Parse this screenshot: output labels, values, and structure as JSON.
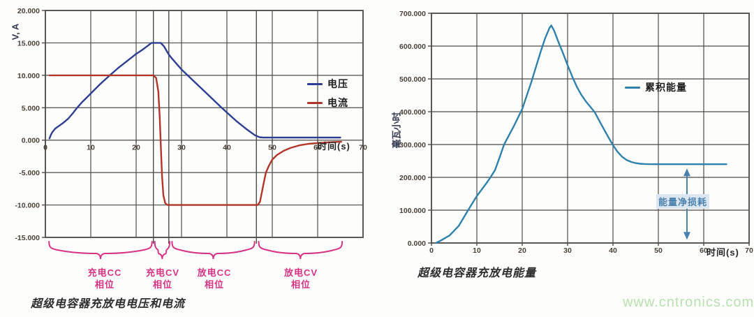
{
  "page": {
    "watermark": "www.cntronics.com"
  },
  "chart_data": [
    {
      "type": "line",
      "title": "超级电容器充放电电压和电流",
      "xlabel": "时间(s)",
      "ylabel": "V, A",
      "xlim": [
        0,
        70
      ],
      "ylim": [
        -15,
        20
      ],
      "grid": true,
      "legend_position": "inside-right",
      "x_ticks": [
        0,
        10,
        20,
        30,
        40,
        50,
        60,
        70
      ],
      "x_tick_labels": [
        "0",
        "10",
        "20",
        "30",
        "40",
        "50",
        "60",
        "70"
      ],
      "x_tick_label_position": "zero-line",
      "y_ticks": [
        20,
        15,
        10,
        5,
        0,
        -5,
        -10,
        -15
      ],
      "y_tick_labels": [
        "20.000",
        "15.000",
        "10.000",
        "5.000",
        "0.000",
        "-5.000",
        "-10.000",
        "-15.000"
      ],
      "phase_boundaries_x": [
        23.8,
        27.2,
        46.5
      ],
      "phases": [
        {
          "name": "充电CC",
          "sub": "相位",
          "x_range": [
            0.8,
            23.5
          ]
        },
        {
          "name": "充电CV",
          "sub": "相位",
          "x_range": [
            24.1,
            27.4
          ]
        },
        {
          "name": "放电CC",
          "sub": "相位",
          "x_range": [
            27.9,
            46.1
          ]
        },
        {
          "name": "放电CV",
          "sub": "相位",
          "x_range": [
            47.0,
            65.4
          ]
        }
      ],
      "series": [
        {
          "name": "电压",
          "color": "#2d3e92",
          "points": [
            [
              0.9,
              0.25
            ],
            [
              1.2,
              0.8
            ],
            [
              1.6,
              1.3
            ],
            [
              2.2,
              1.8
            ],
            [
              3,
              2.2
            ],
            [
              4,
              2.7
            ],
            [
              5,
              3.3
            ],
            [
              6,
              4.1
            ],
            [
              7,
              5.0
            ],
            [
              8,
              5.8
            ],
            [
              10,
              7.2
            ],
            [
              12,
              8.6
            ],
            [
              14.2,
              10
            ],
            [
              16,
              11.1
            ],
            [
              18,
              12.2
            ],
            [
              20,
              13.3
            ],
            [
              21.5,
              14
            ],
            [
              23.4,
              15
            ],
            [
              25.4,
              15
            ],
            [
              26.1,
              14.5
            ],
            [
              27.2,
              13.2
            ],
            [
              28,
              12.5
            ],
            [
              30,
              10.9
            ],
            [
              33,
              8.9
            ],
            [
              36,
              6.9
            ],
            [
              39,
              4.9
            ],
            [
              42,
              3.0
            ],
            [
              44.5,
              1.6
            ],
            [
              46.2,
              0.75
            ],
            [
              47.2,
              0.45
            ],
            [
              48,
              0.4
            ],
            [
              55,
              0.4
            ],
            [
              65,
              0.4
            ]
          ]
        },
        {
          "name": "电流",
          "color": "#b23529",
          "points": [
            [
              0.9,
              10
            ],
            [
              23.8,
              10
            ],
            [
              24.4,
              9.6
            ],
            [
              24.9,
              7.5
            ],
            [
              25.2,
              3.5
            ],
            [
              25.45,
              -1
            ],
            [
              25.7,
              -5.5
            ],
            [
              26,
              -8.5
            ],
            [
              26.4,
              -9.7
            ],
            [
              26.9,
              -10
            ],
            [
              46.8,
              -10
            ],
            [
              47.3,
              -9.5
            ],
            [
              48,
              -7
            ],
            [
              48.6,
              -5
            ],
            [
              49.3,
              -3.9
            ],
            [
              50,
              -3
            ],
            [
              51,
              -2.3
            ],
            [
              52.5,
              -1.65
            ],
            [
              54,
              -1.2
            ],
            [
              56,
              -0.8
            ],
            [
              58,
              -0.57
            ],
            [
              60,
              -0.45
            ],
            [
              62,
              -0.35
            ],
            [
              64,
              -0.28
            ],
            [
              65.2,
              -0.26
            ]
          ]
        }
      ]
    },
    {
      "type": "line",
      "title": "超级电容器充放电能量",
      "xlabel": "时间(s)",
      "ylabel": "毫瓦小时",
      "xlim": [
        0,
        70
      ],
      "ylim": [
        0,
        700
      ],
      "grid": true,
      "legend_position": "inside-right",
      "x_ticks": [
        0,
        10,
        20,
        30,
        40,
        50,
        60,
        70
      ],
      "x_tick_labels": [
        "0",
        "10",
        "20",
        "30",
        "40",
        "50",
        "60",
        "70"
      ],
      "x_tick_label_position": "bottom",
      "y_ticks": [
        700,
        600,
        500,
        400,
        300,
        200,
        100,
        0
      ],
      "y_tick_labels": [
        "700.000",
        "600.000",
        "500.000",
        "400.000",
        "300.000",
        "200.000",
        "100.000",
        "0.000"
      ],
      "series": [
        {
          "name": "累积能量",
          "color": "#2f81ad",
          "points": [
            [
              1,
              0
            ],
            [
              2,
              7
            ],
            [
              4,
              23
            ],
            [
              6,
              52
            ],
            [
              8,
              98
            ],
            [
              10,
              143
            ],
            [
              12,
              180
            ],
            [
              13,
              200
            ],
            [
              14,
              222
            ],
            [
              15,
              260
            ],
            [
              16,
              300
            ],
            [
              18,
              352
            ],
            [
              20,
              408
            ],
            [
              22,
              490
            ],
            [
              24,
              580
            ],
            [
              25,
              622
            ],
            [
              26,
              655
            ],
            [
              26.4,
              663
            ],
            [
              27,
              648
            ],
            [
              28,
              612
            ],
            [
              29,
              578
            ],
            [
              30,
              542
            ],
            [
              31,
              508
            ],
            [
              32,
              477
            ],
            [
              33,
              452
            ],
            [
              34,
              432
            ],
            [
              35,
              415
            ],
            [
              36,
              398
            ],
            [
              37,
              372
            ],
            [
              38,
              347
            ],
            [
              39,
              322
            ],
            [
              40,
              298
            ],
            [
              41,
              278
            ],
            [
              42,
              263
            ],
            [
              43,
              253
            ],
            [
              44,
              247
            ],
            [
              45,
              243.5
            ],
            [
              46,
              241.5
            ],
            [
              47,
              240.7
            ],
            [
              48,
              240.2
            ],
            [
              50,
              240
            ],
            [
              55,
              240
            ],
            [
              60,
              240
            ],
            [
              65,
              240
            ]
          ]
        }
      ],
      "annotation": {
        "text": "能量净损耗",
        "color": "#4a80ad",
        "x": 56.3,
        "y_top": 240,
        "y_bottom": 10
      }
    }
  ]
}
